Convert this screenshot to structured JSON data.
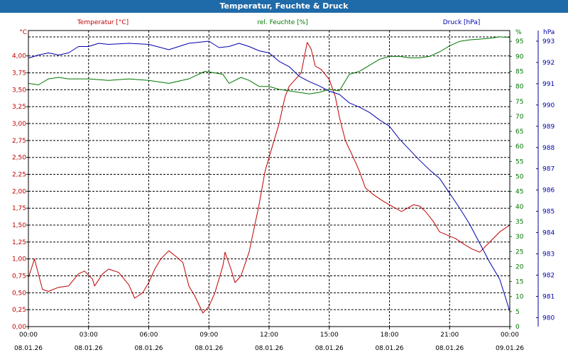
{
  "window": {
    "title": "Temperatur, Feuchte & Druck"
  },
  "colors": {
    "temperature": "#c00000",
    "humidity": "#007700",
    "pressure": "#0000aa",
    "axis_text": "#000000",
    "titlebar": "#1f6aa8"
  },
  "chart_data": {
    "type": "line",
    "title": "Temperatur, Feuchte & Druck",
    "x_range_hours": [
      0,
      24
    ],
    "x_ticks": [
      {
        "time": "00:00",
        "date": "08.01.26"
      },
      {
        "time": "03:00",
        "date": "08.01.26"
      },
      {
        "time": "06:00",
        "date": "08.01.26"
      },
      {
        "time": "09:00",
        "date": "08.01.26"
      },
      {
        "time": "12:00",
        "date": "08.01.26"
      },
      {
        "time": "15:00",
        "date": "08.01.26"
      },
      {
        "time": "18:00",
        "date": "08.01.26"
      },
      {
        "time": "21:00",
        "date": "08.01.26"
      },
      {
        "time": "00:00",
        "date": "09.01.26"
      }
    ],
    "axes": {
      "temperature": {
        "unit_label": "°C",
        "ylim": [
          0,
          4.375
        ],
        "ticks": [
          "0,00",
          "0,25",
          "0,50",
          "0,75",
          "1,00",
          "1,25",
          "1,50",
          "1,75",
          "2,00",
          "2,25",
          "2,50",
          "2,75",
          "3,00",
          "3,25",
          "3,50",
          "3,75",
          "4,00"
        ]
      },
      "humidity": {
        "unit_label": "%",
        "ylim": [
          0,
          98.6
        ],
        "ticks": [
          "0",
          "5",
          "10",
          "15",
          "20",
          "25",
          "30",
          "35",
          "40",
          "45",
          "50",
          "55",
          "60",
          "65",
          "70",
          "75",
          "80",
          "85",
          "90",
          "95"
        ]
      },
      "pressure": {
        "unit_label": "hPa",
        "ylim": [
          979.58,
          993.5
        ],
        "ticks": [
          "980",
          "981",
          "982",
          "983",
          "984",
          "985",
          "986",
          "987",
          "988",
          "989",
          "990",
          "991",
          "992",
          "993"
        ]
      }
    },
    "series": [
      {
        "name": "Temperatur [°C]",
        "axis": "temperature",
        "points": [
          [
            0,
            0.72
          ],
          [
            0.3,
            1.0
          ],
          [
            0.7,
            0.55
          ],
          [
            1.0,
            0.52
          ],
          [
            1.5,
            0.58
          ],
          [
            2.0,
            0.6
          ],
          [
            2.5,
            0.78
          ],
          [
            2.8,
            0.82
          ],
          [
            3.2,
            0.7
          ],
          [
            3.3,
            0.6
          ],
          [
            3.7,
            0.78
          ],
          [
            4.0,
            0.85
          ],
          [
            4.5,
            0.8
          ],
          [
            5.0,
            0.62
          ],
          [
            5.3,
            0.42
          ],
          [
            5.7,
            0.5
          ],
          [
            6.0,
            0.65
          ],
          [
            6.3,
            0.85
          ],
          [
            6.6,
            1.0
          ],
          [
            7.0,
            1.12
          ],
          [
            7.3,
            1.05
          ],
          [
            7.7,
            0.95
          ],
          [
            8.0,
            0.6
          ],
          [
            8.3,
            0.45
          ],
          [
            8.7,
            0.2
          ],
          [
            9.0,
            0.3
          ],
          [
            9.3,
            0.5
          ],
          [
            9.7,
            0.9
          ],
          [
            9.8,
            1.1
          ],
          [
            10.1,
            0.85
          ],
          [
            10.3,
            0.65
          ],
          [
            10.6,
            0.75
          ],
          [
            11.0,
            1.1
          ],
          [
            11.5,
            1.8
          ],
          [
            11.8,
            2.3
          ],
          [
            12.2,
            2.7
          ],
          [
            12.5,
            3.0
          ],
          [
            12.8,
            3.4
          ],
          [
            13.0,
            3.55
          ],
          [
            13.3,
            3.65
          ],
          [
            13.6,
            3.75
          ],
          [
            13.9,
            4.2
          ],
          [
            14.1,
            4.1
          ],
          [
            14.3,
            3.85
          ],
          [
            14.6,
            3.8
          ],
          [
            15.0,
            3.65
          ],
          [
            15.3,
            3.4
          ],
          [
            15.5,
            3.1
          ],
          [
            15.8,
            2.75
          ],
          [
            16.2,
            2.5
          ],
          [
            16.5,
            2.3
          ],
          [
            16.8,
            2.05
          ],
          [
            17.2,
            1.95
          ],
          [
            17.6,
            1.87
          ],
          [
            18.0,
            1.8
          ],
          [
            18.3,
            1.75
          ],
          [
            18.6,
            1.7
          ],
          [
            18.9,
            1.75
          ],
          [
            19.2,
            1.8
          ],
          [
            19.5,
            1.78
          ],
          [
            19.8,
            1.7
          ],
          [
            20.2,
            1.55
          ],
          [
            20.5,
            1.4
          ],
          [
            20.9,
            1.35
          ],
          [
            21.3,
            1.3
          ],
          [
            21.7,
            1.22
          ],
          [
            22.1,
            1.15
          ],
          [
            22.5,
            1.1
          ],
          [
            23.0,
            1.25
          ],
          [
            23.5,
            1.4
          ],
          [
            24.0,
            1.5
          ]
        ]
      },
      {
        "name": "rel. Feuchte [%]",
        "axis": "humidity",
        "points": [
          [
            0,
            81
          ],
          [
            0.5,
            80.5
          ],
          [
            1.0,
            82.5
          ],
          [
            1.5,
            83
          ],
          [
            2.0,
            82.5
          ],
          [
            3.0,
            82.5
          ],
          [
            4.0,
            82
          ],
          [
            5.0,
            82.5
          ],
          [
            6.0,
            82
          ],
          [
            7.0,
            81
          ],
          [
            8.0,
            82.5
          ],
          [
            8.8,
            85
          ],
          [
            9.3,
            84.5
          ],
          [
            9.7,
            84
          ],
          [
            10.0,
            81
          ],
          [
            10.3,
            82
          ],
          [
            10.6,
            83
          ],
          [
            11.0,
            82
          ],
          [
            11.5,
            80
          ],
          [
            12.0,
            80
          ],
          [
            12.5,
            79
          ],
          [
            13.0,
            78.5
          ],
          [
            14.0,
            77.5
          ],
          [
            14.5,
            78
          ],
          [
            15.0,
            79
          ],
          [
            15.5,
            78.5
          ],
          [
            16.0,
            84
          ],
          [
            16.5,
            85
          ],
          [
            17.0,
            87
          ],
          [
            17.5,
            89
          ],
          [
            18.0,
            90
          ],
          [
            18.5,
            90
          ],
          [
            19.0,
            89.5
          ],
          [
            19.5,
            89.5
          ],
          [
            20.0,
            90
          ],
          [
            20.5,
            91.5
          ],
          [
            21.0,
            93.5
          ],
          [
            21.5,
            95
          ],
          [
            22.0,
            95.5
          ],
          [
            23.0,
            96
          ],
          [
            23.5,
            96.5
          ],
          [
            24.0,
            96.3
          ]
        ]
      },
      {
        "name": "Druck [hPa]",
        "axis": "pressure",
        "points": [
          [
            0,
            992.2
          ],
          [
            0.5,
            992.35
          ],
          [
            1.0,
            992.45
          ],
          [
            1.5,
            992.35
          ],
          [
            2.0,
            992.45
          ],
          [
            2.5,
            992.75
          ],
          [
            3.0,
            992.75
          ],
          [
            3.5,
            992.9
          ],
          [
            4.0,
            992.85
          ],
          [
            5.0,
            992.9
          ],
          [
            6.0,
            992.85
          ],
          [
            7.0,
            992.6
          ],
          [
            7.5,
            992.75
          ],
          [
            8.0,
            992.9
          ],
          [
            9.0,
            993.0
          ],
          [
            9.5,
            992.7
          ],
          [
            10.0,
            992.75
          ],
          [
            10.5,
            992.9
          ],
          [
            11.0,
            992.75
          ],
          [
            11.5,
            992.55
          ],
          [
            12.0,
            992.45
          ],
          [
            12.5,
            992.05
          ],
          [
            13.0,
            991.8
          ],
          [
            13.5,
            991.35
          ],
          [
            14.0,
            991.1
          ],
          [
            14.5,
            990.9
          ],
          [
            15.0,
            990.65
          ],
          [
            15.5,
            990.5
          ],
          [
            16.0,
            990.1
          ],
          [
            16.5,
            989.9
          ],
          [
            17.0,
            989.65
          ],
          [
            17.5,
            989.3
          ],
          [
            18.0,
            989.0
          ],
          [
            18.5,
            988.4
          ],
          [
            19.0,
            987.9
          ],
          [
            19.5,
            987.4
          ],
          [
            20.0,
            986.95
          ],
          [
            20.5,
            986.55
          ],
          [
            21.0,
            985.85
          ],
          [
            21.5,
            985.15
          ],
          [
            22.0,
            984.4
          ],
          [
            22.5,
            983.5
          ],
          [
            23.0,
            982.6
          ],
          [
            23.5,
            981.8
          ],
          [
            24.0,
            980.3
          ]
        ]
      }
    ]
  }
}
